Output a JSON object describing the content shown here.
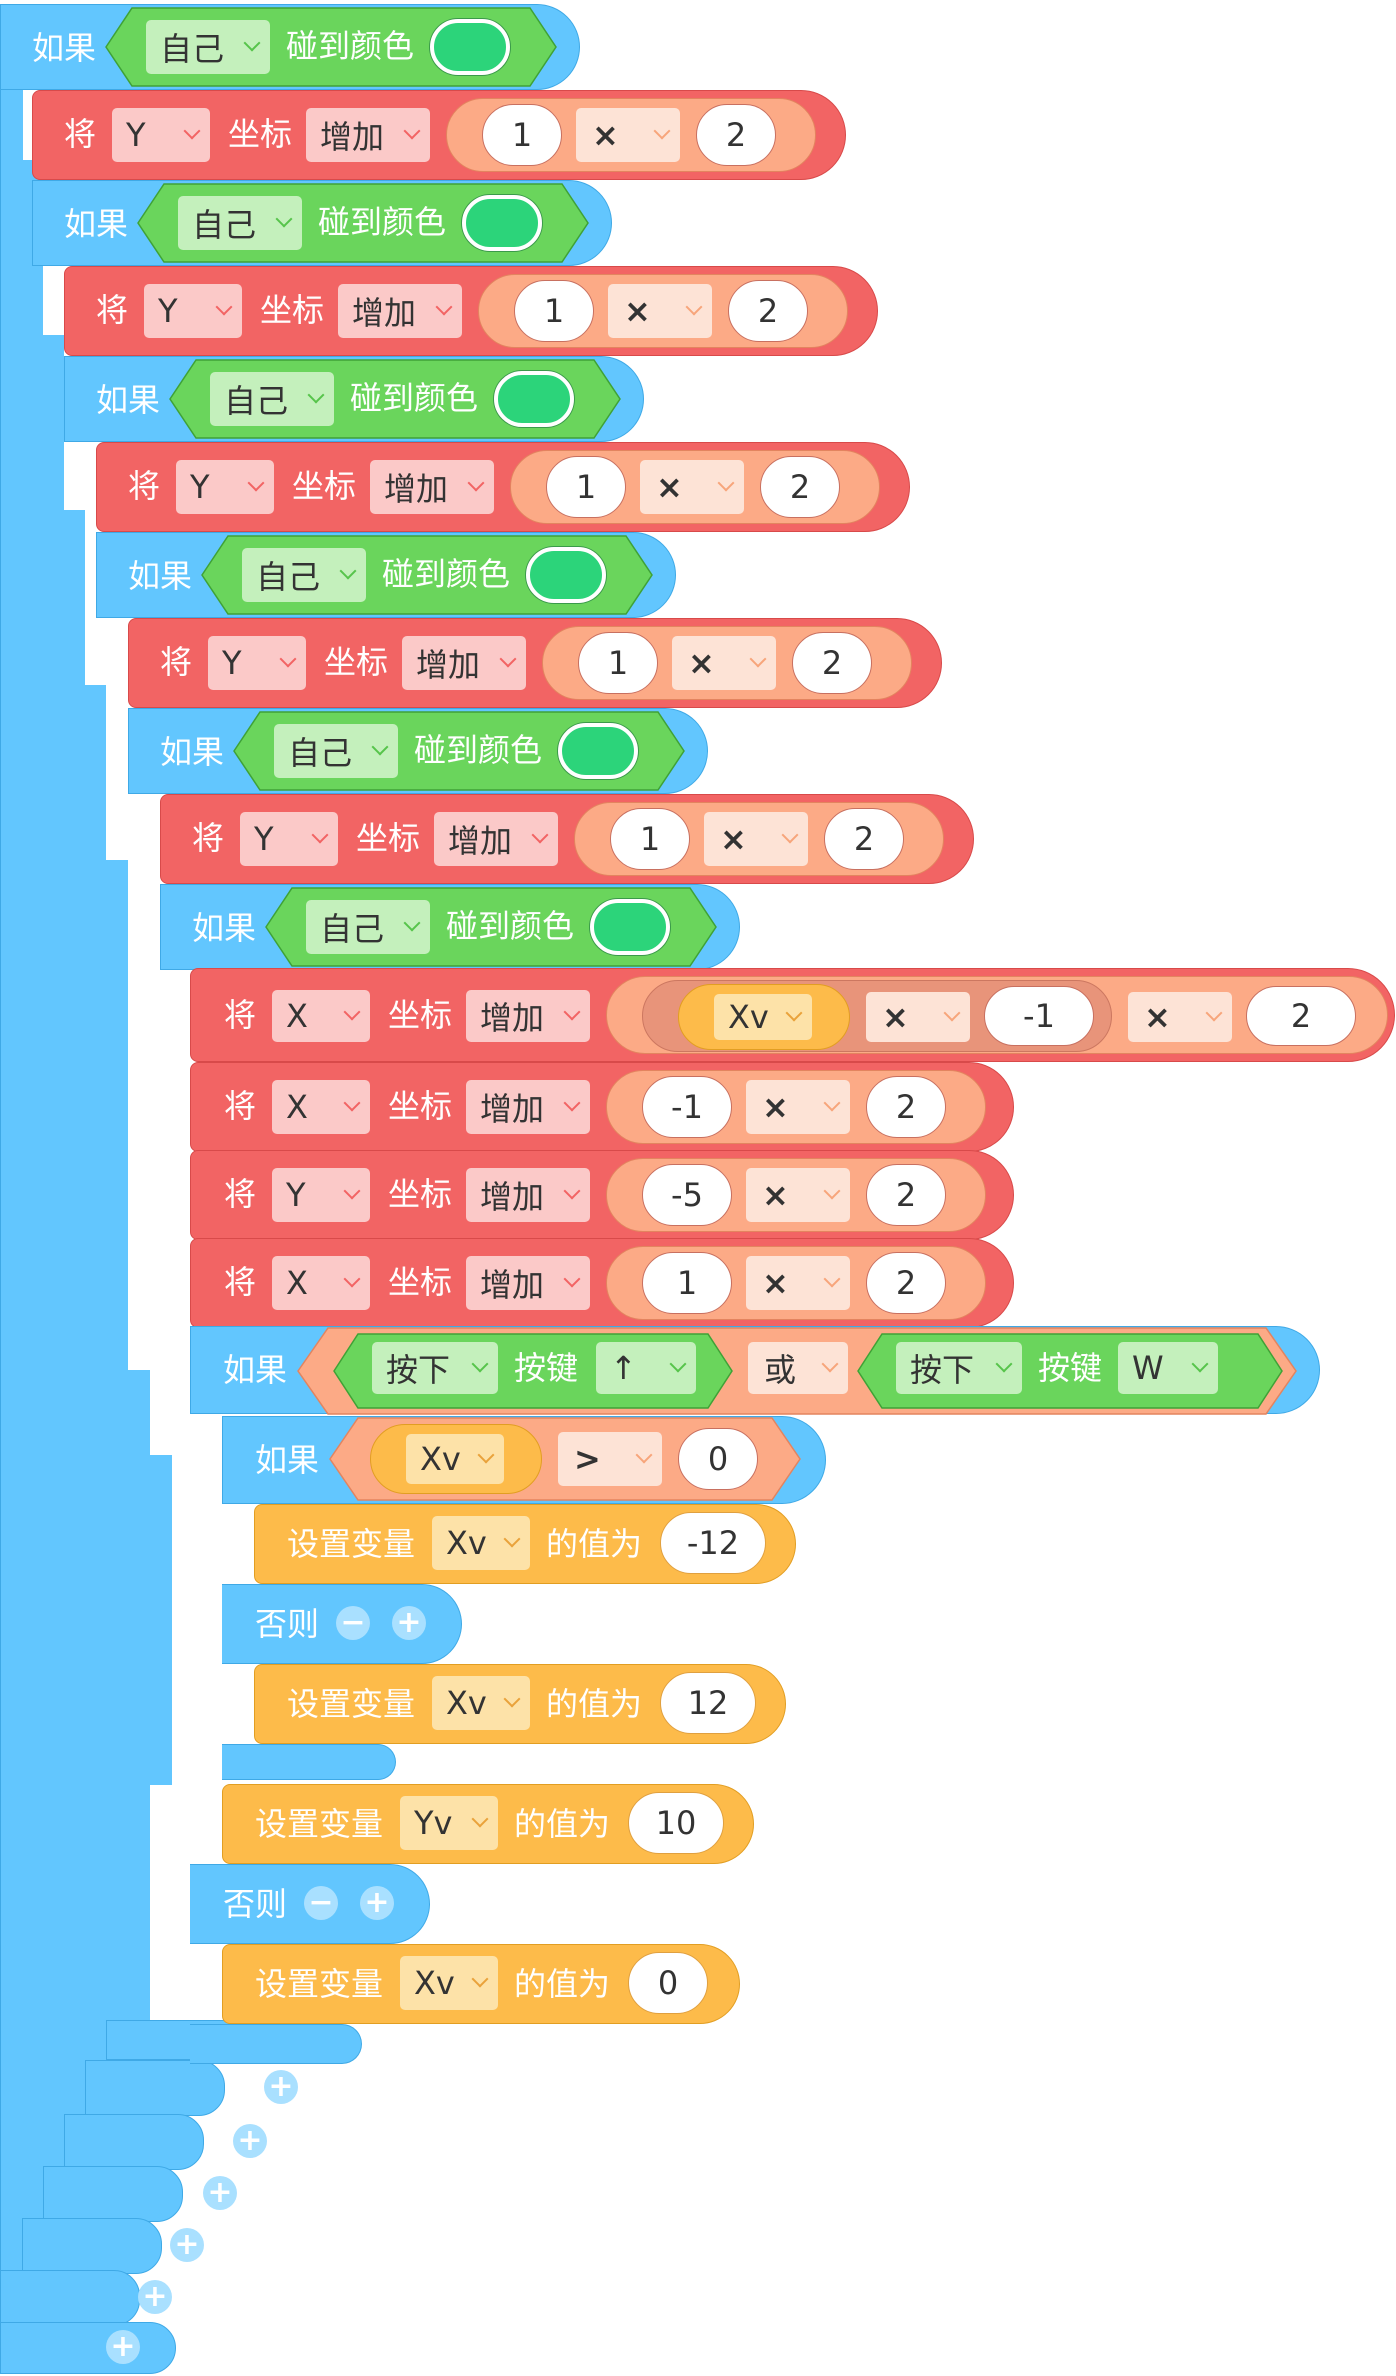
{
  "colors": {
    "control": "#62c6fe",
    "motion": "#f26464",
    "sensing": "#57c44b",
    "operator": "#fcaa86",
    "variable": "#fdbb4a",
    "touch_color": "#2cd47a"
  },
  "icons": {
    "add": "plus-icon",
    "remove": "minus-icon",
    "dropdown": "chevron-down-icon"
  },
  "labels": {
    "if": "如果",
    "else": "否则",
    "set_prefix": "将",
    "coord": "坐标",
    "touch_color": "碰到颜色",
    "key_pressed": "按键",
    "set_var": "设置变量",
    "value_is": "的值为",
    "plus": "+",
    "minus": "−"
  },
  "options": {
    "self": "自己",
    "increase": "增加",
    "times": "×",
    "greater": ">",
    "or": "或",
    "press": "按下",
    "key_up": "↑",
    "key_w": "W",
    "axis_x": "X",
    "axis_y": "Y",
    "var_xv": "Xv",
    "var_yv": "Yv"
  },
  "values": {
    "v1": "1",
    "v2": "2",
    "vneg1": "-1",
    "vneg5": "-5",
    "vzero": "0",
    "vneg12": "-12",
    "v12": "12",
    "v10": "10",
    "v0": "0"
  }
}
